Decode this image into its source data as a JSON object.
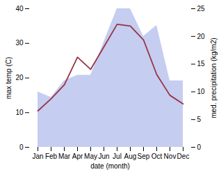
{
  "chart_data": {
    "type": "line",
    "xlabel": "date (month)",
    "ylabel": "max temp (C)",
    "y2label": "med. precipitation (kg/m2)",
    "categories": [
      "Jan",
      "Feb",
      "Mar",
      "Apr",
      "May",
      "Jun",
      "Jul",
      "Aug",
      "Sep",
      "Oct",
      "Nov",
      "Dec"
    ],
    "series": [
      {
        "type": "area",
        "axis": "y2",
        "color": "#c5cdf0",
        "values": [
          10.0,
          9.0,
          12.0,
          13.0,
          13.0,
          19.0,
          25.0,
          25.0,
          20.0,
          22.0,
          12.0,
          12.0
        ]
      },
      {
        "type": "line",
        "color": "#993344",
        "values": [
          10.5,
          14.0,
          18.0,
          26.0,
          22.5,
          29.0,
          35.5,
          35.0,
          31.0,
          21.0,
          15.0,
          12.5
        ]
      }
    ],
    "ylim": [
      0,
      40
    ],
    "yticks": [
      0,
      10,
      20,
      30,
      40
    ],
    "y2lim": [
      0,
      25
    ],
    "y2ticks": [
      0,
      5,
      10,
      15,
      20,
      25
    ],
    "grid": false
  }
}
